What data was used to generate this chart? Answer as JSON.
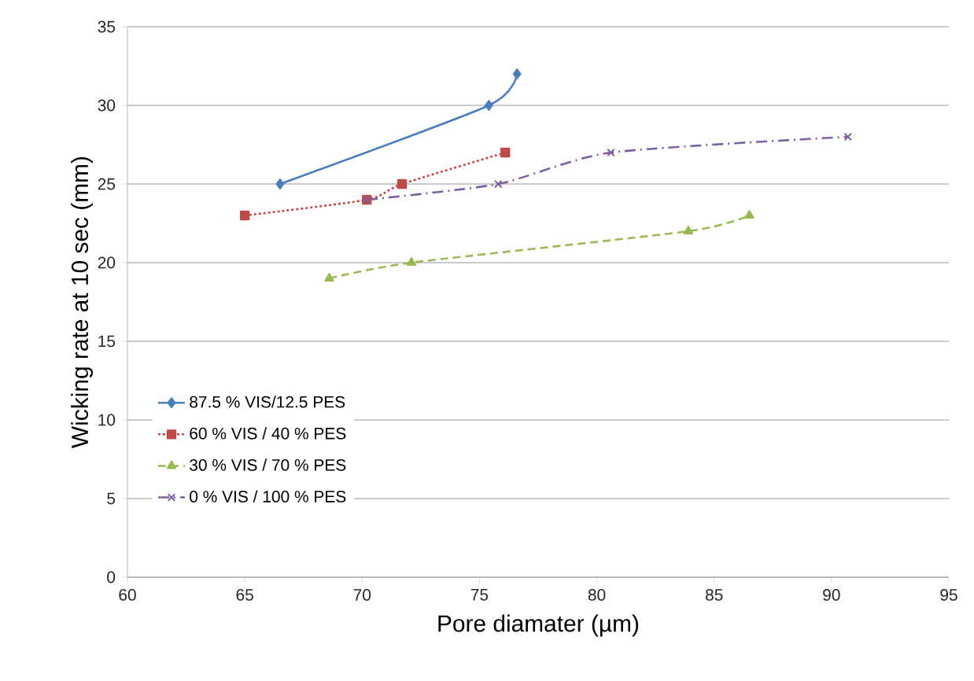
{
  "chart_data": {
    "type": "line",
    "xlabel": "Pore diamater (µm)",
    "ylabel": "Wicking rate at 10 sec (mm)",
    "xlim": [
      60,
      95
    ],
    "xticks": [
      60,
      65,
      70,
      75,
      80,
      85,
      90,
      95
    ],
    "ylim": [
      0,
      35
    ],
    "yticks": [
      0,
      5,
      10,
      15,
      20,
      25,
      30,
      35
    ],
    "grid": "y",
    "legend": "bottom left",
    "series": [
      {
        "name": "87.5 % VIS/12.5 PES",
        "color": "#4a7ebb",
        "marker": "diamond",
        "line_style": "solid",
        "x": [
          66.5,
          75.4,
          76.6
        ],
        "values": [
          25,
          30,
          32
        ]
      },
      {
        "name": "60 % VIS / 40 % PES",
        "color": "#be4b48",
        "marker": "square",
        "line_style": "dotted",
        "x": [
          65,
          70.2,
          71.7,
          76.1
        ],
        "values": [
          23,
          24,
          25,
          27
        ]
      },
      {
        "name": "30 % VIS / 70 % PES",
        "color": "#98b954",
        "marker": "triangle",
        "line_style": "dashed",
        "x": [
          68.6,
          72.1,
          83.9,
          86.5
        ],
        "values": [
          19,
          20,
          22,
          23
        ]
      },
      {
        "name": "0 % VIS / 100 % PES",
        "color": "#7d60a0",
        "marker": "cross",
        "line_style": "dashdot",
        "x": [
          70.2,
          75.8,
          80.6,
          90.7
        ],
        "values": [
          24,
          25,
          27,
          28
        ]
      }
    ]
  }
}
